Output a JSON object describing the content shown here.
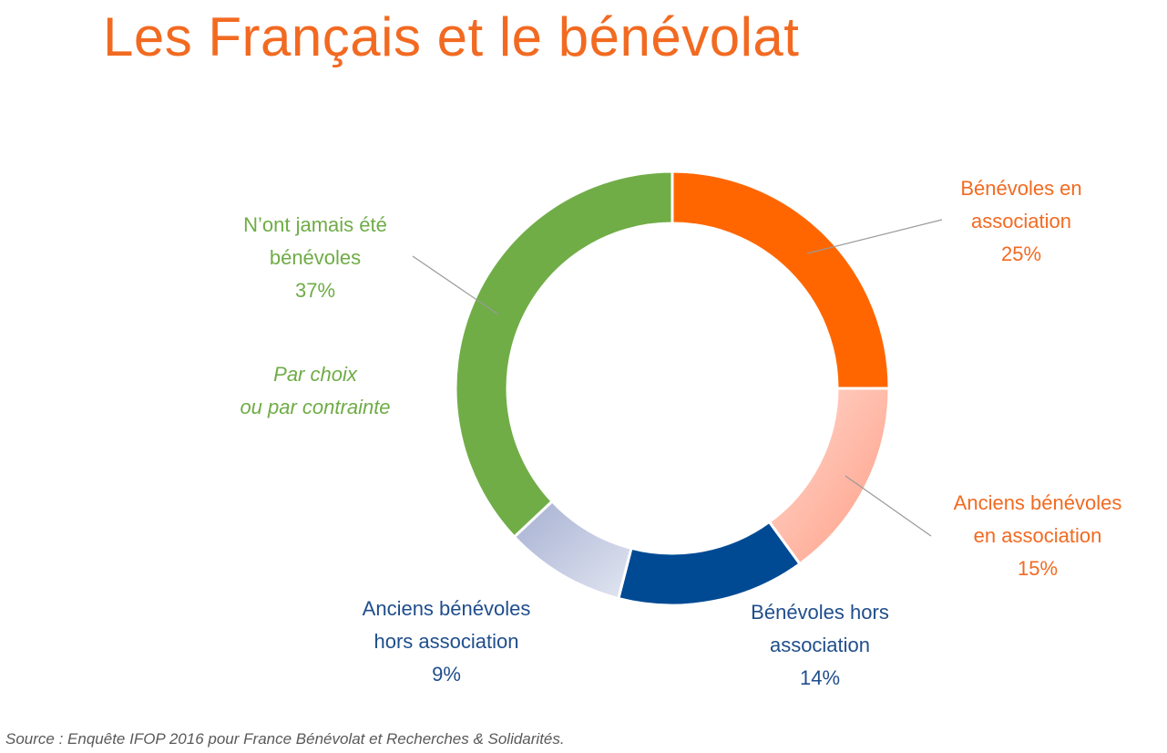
{
  "title": "Les Français et le bénévolat",
  "source": "Source : Enquête IFOP 2016 pour France Bénévolat et Recherches & Solidarités.",
  "note": [
    "Par choix",
    "ou par contrainte"
  ],
  "colors": {
    "title": "#f26a21",
    "benevoles_en_association": "#ff6600",
    "anciens_benevoles_en_association": "#ffa08a",
    "benevoles_hors_association": "#004a94",
    "anciens_benevoles_hors_association": "#b2bcd8",
    "nont_jamais_ete_benevoles": "#70ad47"
  },
  "chart_data": {
    "type": "pie",
    "variant": "donut",
    "title": "Les Français et le bénévolat",
    "slices": [
      {
        "label_lines": [
          "Bénévoles en",
          "association"
        ],
        "value": 25,
        "value_label": "25%"
      },
      {
        "label_lines": [
          "Anciens bénévoles",
          "en association"
        ],
        "value": 15,
        "value_label": "15%"
      },
      {
        "label_lines": [
          "Bénévoles hors",
          "association"
        ],
        "value": 14,
        "value_label": "14%"
      },
      {
        "label_lines": [
          "Anciens bénévoles",
          "hors association"
        ],
        "value": 9,
        "value_label": "9%"
      },
      {
        "label_lines": [
          "N’ont jamais été",
          "bénévoles"
        ],
        "value": 37,
        "value_label": "37%"
      }
    ]
  }
}
